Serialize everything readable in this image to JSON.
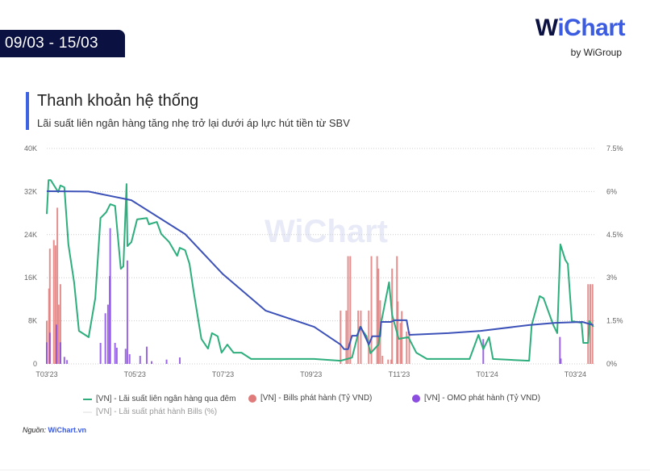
{
  "header": {
    "date_range": "09/03 - 15/03",
    "logo_text": "WiChart",
    "logo_sub": "by WiGroup"
  },
  "title": "Thanh khoản hệ thống",
  "subtitle": "Lãi suất liên ngân hàng tăng nhẹ trở lại dưới áp lực hút tiền từ SBV",
  "watermark": "WiChart",
  "source": {
    "label": "Nguồn:",
    "link": "WiChart.vn"
  },
  "colors": {
    "interbank": "#2eae7c",
    "bills": "#e07b7b",
    "omo": "#8b4ee0",
    "bills_rate": "#3d52b8",
    "accent": "#3d63e3"
  },
  "chart_data": {
    "type": "combo",
    "x_unit": "months since 2023-03-01",
    "x_ticks": [
      {
        "x": 0,
        "label": "T03'23"
      },
      {
        "x": 2,
        "label": "T05'23"
      },
      {
        "x": 4,
        "label": "T07'23"
      },
      {
        "x": 6,
        "label": "T09'23"
      },
      {
        "x": 8,
        "label": "T11'23"
      },
      {
        "x": 10,
        "label": "T01'24"
      },
      {
        "x": 12,
        "label": "T03'24"
      }
    ],
    "xlim": [
      0,
      12.45
    ],
    "y_left": {
      "ylim": [
        0,
        40000
      ],
      "ticks": [
        "0",
        "8K",
        "16K",
        "24K",
        "32K",
        "40K"
      ],
      "tick_values": [
        0,
        8000,
        16000,
        24000,
        32000,
        40000
      ]
    },
    "y_right": {
      "ylim": [
        0,
        7.5
      ],
      "ticks": [
        "0%",
        "1.5%",
        "3%",
        "4.5%",
        "6%",
        "7.5%"
      ],
      "tick_values": [
        0,
        1.5,
        3,
        4.5,
        6,
        7.5
      ]
    },
    "grid": true,
    "legend_position": "bottom",
    "series": [
      {
        "name": "[VN] - Lãi suất liên ngân hàng qua đêm",
        "type": "line",
        "axis": "right",
        "color": "#2eae7c",
        "points": [
          [
            0,
            5.22
          ],
          [
            0.04,
            6.4
          ],
          [
            0.09,
            6.4
          ],
          [
            0.26,
            5.98
          ],
          [
            0.31,
            6.21
          ],
          [
            0.4,
            6.15
          ],
          [
            0.49,
            4.16
          ],
          [
            0.62,
            2.84
          ],
          [
            0.73,
            1.15
          ],
          [
            0.95,
            0.93
          ],
          [
            1.1,
            2.28
          ],
          [
            1.22,
            5.08
          ],
          [
            1.35,
            5.28
          ],
          [
            1.44,
            5.56
          ],
          [
            1.55,
            5.5
          ],
          [
            1.68,
            3.31
          ],
          [
            1.74,
            3.4
          ],
          [
            1.81,
            6.26
          ],
          [
            1.83,
            4.1
          ],
          [
            1.92,
            4.24
          ],
          [
            2.05,
            5.03
          ],
          [
            2.27,
            5.08
          ],
          [
            2.32,
            4.86
          ],
          [
            2.5,
            4.94
          ],
          [
            2.6,
            4.52
          ],
          [
            2.78,
            4.24
          ],
          [
            2.96,
            3.76
          ],
          [
            3.02,
            4.04
          ],
          [
            3.14,
            3.96
          ],
          [
            3.24,
            3.48
          ],
          [
            3.33,
            2.56
          ],
          [
            3.51,
            0.87
          ],
          [
            3.66,
            0.53
          ],
          [
            3.75,
            1.07
          ],
          [
            3.88,
            0.96
          ],
          [
            3.97,
            0.39
          ],
          [
            4.1,
            0.67
          ],
          [
            4.24,
            0.39
          ],
          [
            4.42,
            0.39
          ],
          [
            4.64,
            0.17
          ],
          [
            6.07,
            0.17
          ],
          [
            6.67,
            0.11
          ],
          [
            6.93,
            0.22
          ],
          [
            7.11,
            1.29
          ],
          [
            7.26,
            0.96
          ],
          [
            7.35,
            0.37
          ],
          [
            7.53,
            0.67
          ],
          [
            7.59,
            1.43
          ],
          [
            7.77,
            2.84
          ],
          [
            7.84,
            1.71
          ],
          [
            7.99,
            0.87
          ],
          [
            8.21,
            0.93
          ],
          [
            8.39,
            0.39
          ],
          [
            8.63,
            0.17
          ],
          [
            9.6,
            0.17
          ],
          [
            9.8,
            1.01
          ],
          [
            9.91,
            0.51
          ],
          [
            10.04,
            0.93
          ],
          [
            10.13,
            0.17
          ],
          [
            10.95,
            0.11
          ],
          [
            11.01,
            1.35
          ],
          [
            11.19,
            2.36
          ],
          [
            11.28,
            2.28
          ],
          [
            11.5,
            1.35
          ],
          [
            11.59,
            1.07
          ],
          [
            11.66,
            4.16
          ],
          [
            11.77,
            3.62
          ],
          [
            11.83,
            3.48
          ],
          [
            11.92,
            1.49
          ],
          [
            12.14,
            1.43
          ],
          [
            12.18,
            0.73
          ],
          [
            12.29,
            0.73
          ],
          [
            12.32,
            1.49
          ],
          [
            12.41,
            1.29
          ]
        ]
      },
      {
        "name": "[VN] - Bills phát hành (Tỷ VND)",
        "type": "bar",
        "axis": "left",
        "color": "#e07b7b",
        "points": [
          [
            0,
            8000
          ],
          [
            0.05,
            14000
          ],
          [
            0.07,
            21400
          ],
          [
            0.16,
            23000
          ],
          [
            0.2,
            22000
          ],
          [
            0.24,
            29000
          ],
          [
            0.27,
            11000
          ],
          [
            0.31,
            14800
          ],
          [
            6.67,
            9900
          ],
          [
            6.8,
            9900
          ],
          [
            6.84,
            20000
          ],
          [
            6.89,
            20000
          ],
          [
            7.07,
            9900
          ],
          [
            7.13,
            9900
          ],
          [
            7.31,
            9900
          ],
          [
            7.37,
            20000
          ],
          [
            7.5,
            20000
          ],
          [
            7.53,
            17700
          ],
          [
            7.57,
            11800
          ],
          [
            7.62,
            1500
          ],
          [
            7.75,
            800
          ],
          [
            7.82,
            800
          ],
          [
            7.84,
            17700
          ],
          [
            7.95,
            20000
          ],
          [
            7.97,
            11600
          ],
          [
            8.03,
            7600
          ],
          [
            8.06,
            9800
          ],
          [
            8.17,
            6000
          ],
          [
            8.23,
            6000
          ],
          [
            12.29,
            14800
          ],
          [
            12.34,
            14800
          ],
          [
            12.39,
            14800
          ]
        ]
      },
      {
        "name": "[VN] - OMO phát hành (Tỷ VND)",
        "type": "bar",
        "axis": "left",
        "color": "#8b4ee0",
        "points": [
          [
            0,
            4000
          ],
          [
            0.07,
            5800
          ],
          [
            0.22,
            7300
          ],
          [
            0.31,
            4000
          ],
          [
            0.4,
            1300
          ],
          [
            0.46,
            700
          ],
          [
            1.22,
            3900
          ],
          [
            1.33,
            9400
          ],
          [
            1.39,
            11000
          ],
          [
            1.43,
            16300
          ],
          [
            1.44,
            25200
          ],
          [
            1.55,
            3900
          ],
          [
            1.59,
            3000
          ],
          [
            1.79,
            2800
          ],
          [
            1.83,
            19200
          ],
          [
            1.88,
            1800
          ],
          [
            2.12,
            1500
          ],
          [
            2.27,
            3200
          ],
          [
            2.38,
            500
          ],
          [
            2.72,
            800
          ],
          [
            3.02,
            1200
          ],
          [
            9.91,
            4600
          ],
          [
            11.65,
            5000
          ],
          [
            11.67,
            1000
          ]
        ]
      },
      {
        "name": "[VN] - Lãi suất phát hành Bills (%)",
        "type": "line",
        "axis": "right",
        "color": "#3d52b8",
        "points": [
          [
            0,
            6.01
          ],
          [
            0.95,
            6.0
          ],
          [
            1.92,
            5.7
          ],
          [
            3.14,
            4.52
          ],
          [
            4.0,
            3.12
          ],
          [
            4.97,
            1.85
          ],
          [
            6.07,
            1.29
          ],
          [
            6.67,
            0.67
          ],
          [
            6.75,
            0.51
          ],
          [
            6.84,
            0.51
          ],
          [
            6.93,
            0.98
          ],
          [
            7.04,
            0.98
          ],
          [
            7.13,
            1.29
          ],
          [
            7.31,
            0.67
          ],
          [
            7.39,
            0.96
          ],
          [
            7.57,
            0.96
          ],
          [
            7.59,
            1.46
          ],
          [
            7.81,
            1.46
          ],
          [
            7.9,
            1.52
          ],
          [
            8.17,
            1.52
          ],
          [
            8.23,
            1.01
          ],
          [
            9.12,
            1.07
          ],
          [
            9.85,
            1.15
          ],
          [
            10.95,
            1.35
          ],
          [
            11.55,
            1.43
          ],
          [
            12.16,
            1.46
          ],
          [
            12.41,
            1.35
          ]
        ]
      }
    ]
  }
}
